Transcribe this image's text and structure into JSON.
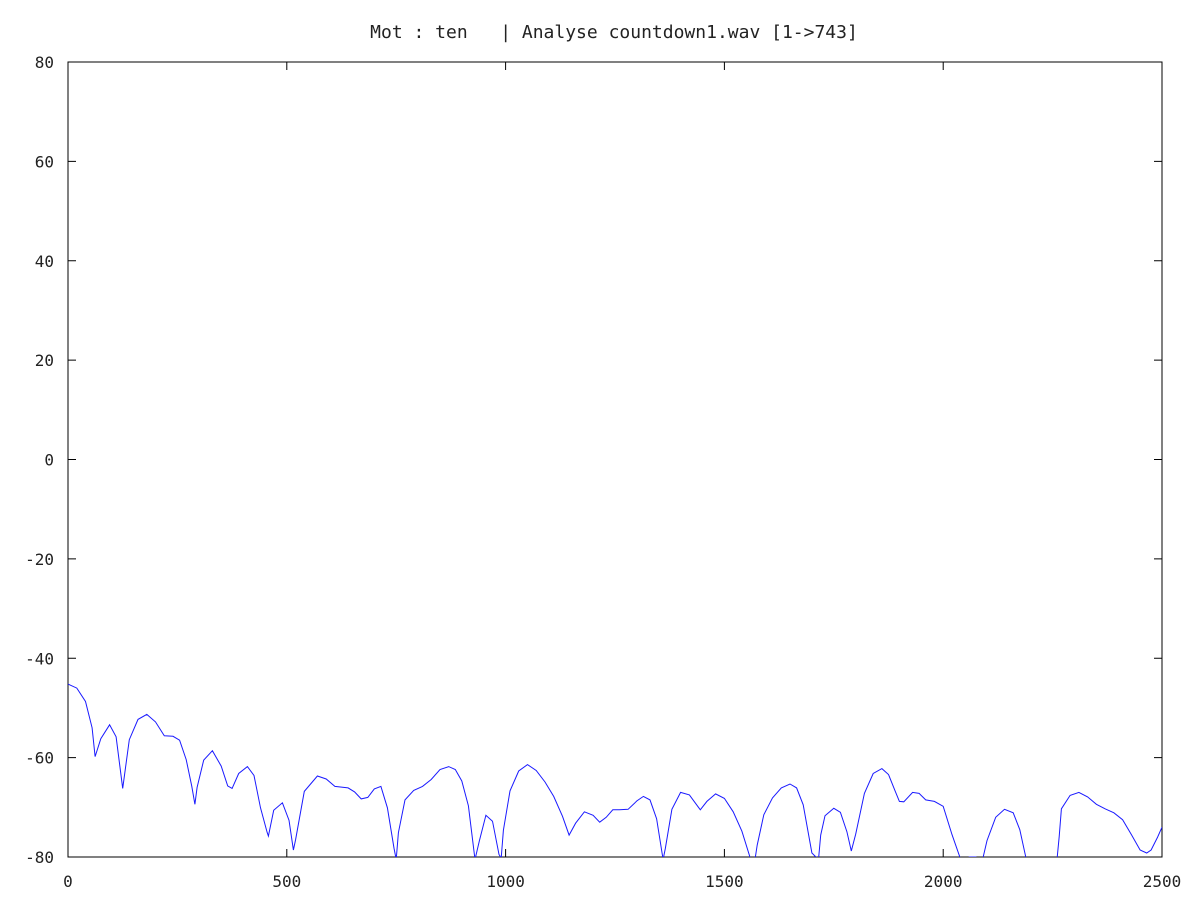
{
  "chart_data": {
    "type": "line",
    "title": "Mot : ten   | Analyse countdown1.wav [1->743]",
    "xlabel": "",
    "ylabel": "",
    "xlim": [
      0,
      2500
    ],
    "ylim": [
      -80,
      80
    ],
    "x_ticks": [
      0,
      500,
      1000,
      1500,
      2000,
      2500
    ],
    "y_ticks": [
      80,
      60,
      40,
      20,
      0,
      -20,
      -40,
      -60,
      -80
    ],
    "grid": false,
    "legend": "none",
    "color": "#1a1aff",
    "series": [
      {
        "x": [
          0,
          20,
          40,
          55,
          62,
          75,
          95,
          110,
          125,
          140,
          160,
          180,
          200,
          220,
          240,
          255,
          270,
          283,
          290,
          295,
          310,
          330,
          350,
          365,
          375,
          390,
          410,
          425,
          440,
          455,
          458,
          470,
          490,
          505,
          515,
          520,
          540,
          570,
          590,
          610,
          640,
          655,
          670,
          685,
          700,
          715,
          730,
          745,
          750,
          755,
          770,
          790,
          810,
          830,
          850,
          870,
          885,
          900,
          915,
          930,
          940,
          955,
          970,
          985,
          990,
          995,
          1010,
          1030,
          1050,
          1070,
          1090,
          1110,
          1130,
          1145,
          1160,
          1180,
          1200,
          1215,
          1230,
          1245,
          1260,
          1280,
          1300,
          1315,
          1330,
          1345,
          1360,
          1365,
          1380,
          1400,
          1420,
          1440,
          1445,
          1460,
          1480,
          1500,
          1520,
          1540,
          1560,
          1570,
          1575,
          1590,
          1610,
          1630,
          1650,
          1665,
          1680,
          1700,
          1715,
          1720,
          1730,
          1750,
          1765,
          1780,
          1790,
          1800,
          1820,
          1840,
          1860,
          1875,
          1890,
          1900,
          1910,
          1930,
          1945,
          1960,
          1980,
          2000,
          2020,
          2040,
          2045,
          2060,
          2075,
          2080,
          2085,
          2090,
          2100,
          2120,
          2140,
          2160,
          2175,
          2190,
          2200,
          2205,
          2260,
          2265,
          2270,
          2290,
          2310,
          2330,
          2350,
          2370,
          2390,
          2410,
          2430,
          2450,
          2465,
          2475,
          2490,
          2500
        ],
        "y": [
          -45.2,
          -46.0,
          -48.7,
          -54.0,
          -59.8,
          -56.2,
          -53.4,
          -55.8,
          -66.2,
          -56.4,
          -52.3,
          -51.3,
          -52.8,
          -55.6,
          -55.7,
          -56.5,
          -60.4,
          -65.8,
          -69.4,
          -66.0,
          -60.5,
          -58.6,
          -61.7,
          -65.7,
          -66.2,
          -63.2,
          -61.8,
          -63.6,
          -70.1,
          -75.0,
          -75.8,
          -70.6,
          -69.1,
          -72.6,
          -78.6,
          -76.5,
          -66.8,
          -63.7,
          -64.3,
          -65.8,
          -66.1,
          -66.9,
          -68.3,
          -68.0,
          -66.3,
          -65.8,
          -70.1,
          -78.2,
          -80.5,
          -75.1,
          -68.5,
          -66.6,
          -65.8,
          -64.4,
          -62.4,
          -61.8,
          -62.4,
          -64.7,
          -69.7,
          -80.5,
          -76.8,
          -71.6,
          -72.8,
          -79.5,
          -80.2,
          -74.6,
          -66.7,
          -62.7,
          -61.4,
          -62.6,
          -64.9,
          -67.8,
          -71.8,
          -75.6,
          -73.2,
          -70.9,
          -71.6,
          -73.0,
          -72.0,
          -70.5,
          -70.5,
          -70.4,
          -68.7,
          -67.8,
          -68.5,
          -72.3,
          -80.5,
          -78.3,
          -70.4,
          -67.0,
          -67.5,
          -69.9,
          -70.5,
          -68.8,
          -67.3,
          -68.2,
          -70.9,
          -74.8,
          -80.5,
          -80.5,
          -77.6,
          -71.5,
          -68.1,
          -66.1,
          -65.3,
          -66.1,
          -69.5,
          -79.2,
          -80.5,
          -75.6,
          -71.7,
          -70.2,
          -71.0,
          -74.9,
          -78.8,
          -75.4,
          -67.2,
          -63.2,
          -62.2,
          -63.4,
          -66.7,
          -68.8,
          -68.9,
          -67.0,
          -67.2,
          -68.5,
          -68.8,
          -69.8,
          -75.5,
          -80.5,
          -80.5,
          -80.0,
          -80.0,
          -80.5,
          -80.5,
          -80.5,
          -76.7,
          -72.0,
          -70.4,
          -71.1,
          -74.5,
          -80.5,
          -80.5,
          -80.5,
          -80.5,
          -75.9,
          -70.3,
          -67.6,
          -67.0,
          -67.9,
          -69.4,
          -70.3,
          -71.1,
          -72.5,
          -75.5,
          -78.6,
          -79.2,
          -78.6,
          -76.0,
          -74.0
        ]
      }
    ]
  }
}
